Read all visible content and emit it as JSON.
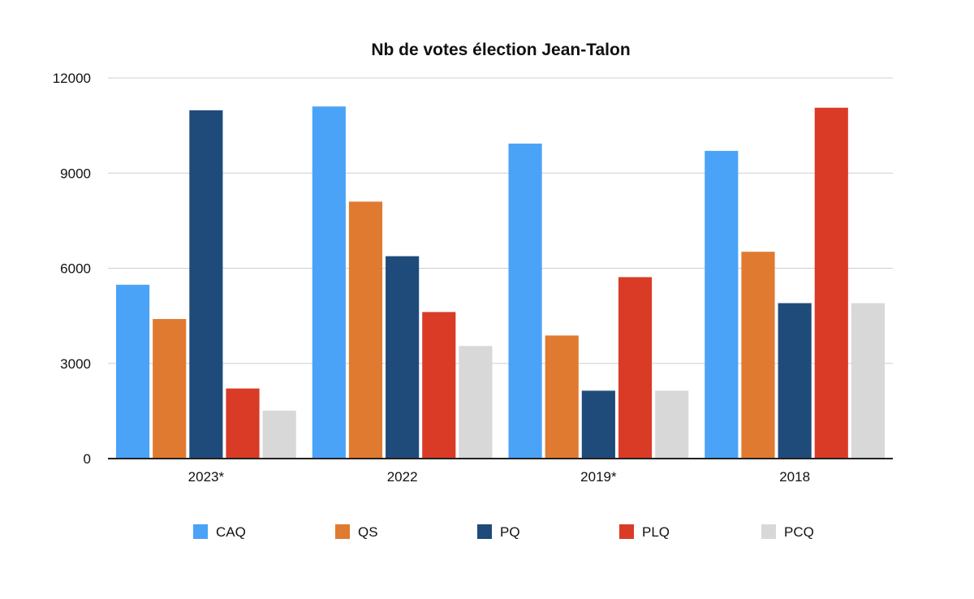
{
  "chart_data": {
    "type": "bar",
    "title": "Nb de votes élection Jean-Talon",
    "xlabel": "",
    "ylabel": "",
    "categories": [
      "2023*",
      "2022",
      "2019*",
      "2018"
    ],
    "series": [
      {
        "name": "CAQ",
        "color": "#4aa3f7",
        "values": [
          5480,
          11100,
          9930,
          9700
        ]
      },
      {
        "name": "QS",
        "color": "#e07a30",
        "values": [
          4400,
          8100,
          3880,
          6520
        ]
      },
      {
        "name": "PQ",
        "color": "#1f4b7a",
        "values": [
          10980,
          6380,
          2140,
          4900
        ]
      },
      {
        "name": "PLQ",
        "color": "#d93b27",
        "values": [
          2210,
          4620,
          5720,
          11060
        ]
      },
      {
        "name": "PCQ",
        "color": "#d8d8d8",
        "values": [
          1510,
          3550,
          2140,
          4900
        ]
      }
    ],
    "ylim": [
      0,
      12000
    ],
    "yticks": [
      0,
      3000,
      6000,
      9000,
      12000
    ],
    "grid": true,
    "legend_position": "bottom"
  }
}
